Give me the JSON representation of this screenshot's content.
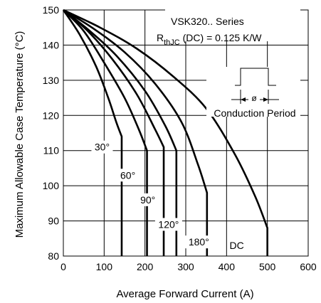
{
  "chart_data": {
    "type": "line",
    "title": "VSK320.. Series",
    "subtitle_prefix": "R",
    "subtitle_sub": "thJC",
    "subtitle_rest": " (DC) = 0.125 K/W",
    "inset_label": "Conduction Period",
    "inset_symbol": "ø",
    "xlabel": "Average Forward Current (A)",
    "ylabel": "Maximum Allowable Case Temperature (°C)",
    "xlim": [
      0,
      600
    ],
    "ylim": [
      80,
      150
    ],
    "xticks": [
      0,
      100,
      200,
      300,
      400,
      500,
      600
    ],
    "yticks": [
      80,
      90,
      100,
      110,
      120,
      130,
      140,
      150
    ],
    "grid": true,
    "series": [
      {
        "name": "30°",
        "points": [
          [
            0,
            150
          ],
          [
            40,
            143
          ],
          [
            80,
            134
          ],
          [
            110,
            125
          ],
          [
            130,
            118
          ],
          [
            143,
            114
          ],
          [
            143,
            80
          ]
        ]
      },
      {
        "name": "60°",
        "points": [
          [
            0,
            150
          ],
          [
            50,
            144
          ],
          [
            100,
            135
          ],
          [
            150,
            125
          ],
          [
            185,
            116
          ],
          [
            205,
            110
          ],
          [
            205,
            80
          ]
        ]
      },
      {
        "name": "90°",
        "points": [
          [
            0,
            150
          ],
          [
            60,
            144
          ],
          [
            120,
            136
          ],
          [
            180,
            126
          ],
          [
            225,
            116
          ],
          [
            246,
            111
          ],
          [
            246,
            80
          ]
        ]
      },
      {
        "name": "120°",
        "points": [
          [
            0,
            150
          ],
          [
            65,
            144
          ],
          [
            130,
            137
          ],
          [
            200,
            127
          ],
          [
            250,
            117
          ],
          [
            277,
            110
          ],
          [
            277,
            80
          ]
        ]
      },
      {
        "name": "180°",
        "points": [
          [
            0,
            150
          ],
          [
            70,
            145
          ],
          [
            150,
            138
          ],
          [
            225,
            129
          ],
          [
            290,
            118
          ],
          [
            330,
            106
          ],
          [
            352,
            98
          ],
          [
            352,
            80
          ]
        ]
      },
      {
        "name": "DC",
        "points": [
          [
            0,
            150
          ],
          [
            90,
            145
          ],
          [
            180,
            139
          ],
          [
            270,
            131
          ],
          [
            350,
            122
          ],
          [
            420,
            109
          ],
          [
            470,
            97
          ],
          [
            500,
            88
          ],
          [
            500,
            80
          ]
        ]
      }
    ],
    "series_labels": [
      {
        "text": "30°",
        "x": 95,
        "y": 110
      },
      {
        "text": "60°",
        "x": 158,
        "y": 102
      },
      {
        "text": "90°",
        "x": 207,
        "y": 95
      },
      {
        "text": "120°",
        "x": 258,
        "y": 88
      },
      {
        "text": "180°",
        "x": 332,
        "y": 83
      },
      {
        "text": "DC",
        "x": 425,
        "y": 82
      }
    ]
  }
}
